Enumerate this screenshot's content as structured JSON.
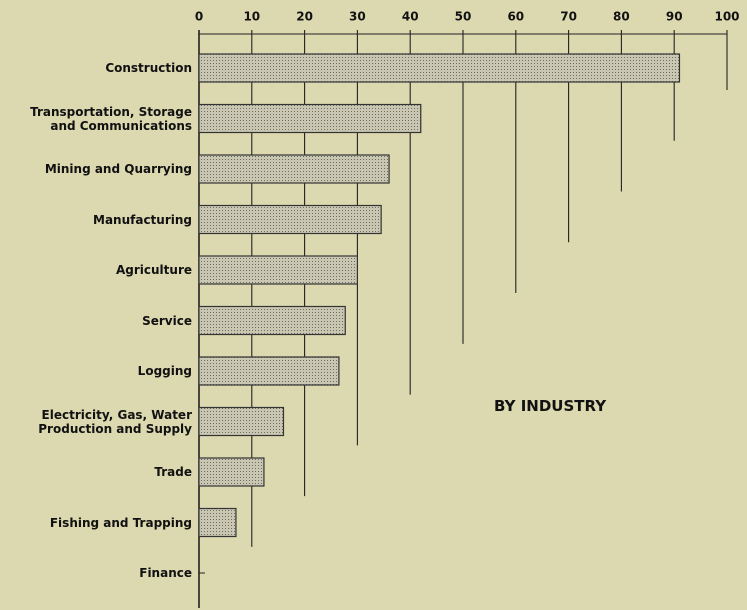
{
  "chart_data": {
    "type": "barh",
    "annotation": "BY INDUSTRY",
    "categories": [
      "Construction",
      "Transportation, Storage\nand Communications",
      "Mining and Quarrying",
      "Manufacturing",
      "Agriculture",
      "Service",
      "Logging",
      "Electricity, Gas, Water\nProduction and Supply",
      "Trade",
      "Fishing and Trapping",
      "Finance"
    ],
    "values": [
      91,
      42,
      36,
      34.5,
      30,
      27.7,
      26.5,
      16,
      12.3,
      7,
      0
    ],
    "color": "#b8b5a3",
    "xlim": [
      0,
      100
    ],
    "xticks": [
      0,
      10,
      20,
      30,
      40,
      50,
      60,
      70,
      80,
      90,
      100
    ]
  }
}
